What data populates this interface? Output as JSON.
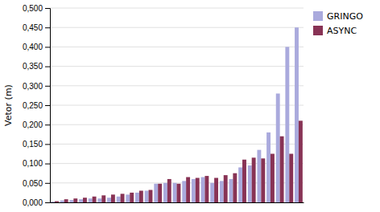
{
  "chart_data": {
    "type": "bar",
    "y_label": "Vetor (m)",
    "categories": [
      null,
      null,
      null,
      null,
      null,
      null,
      null,
      null,
      null,
      null,
      null,
      null,
      null,
      null,
      null,
      null,
      null,
      null,
      null,
      null,
      null,
      null,
      null,
      null,
      null,
      null,
      null
    ],
    "series": [
      {
        "name": "GRINGO",
        "color": "#aaaadd",
        "values": [
          0.002,
          0.005,
          0.006,
          0.008,
          0.01,
          0.01,
          0.012,
          0.015,
          0.02,
          0.025,
          0.03,
          0.048,
          0.05,
          0.05,
          0.055,
          0.06,
          0.065,
          0.05,
          0.055,
          0.06,
          0.09,
          0.095,
          0.135,
          0.18,
          0.28,
          0.4,
          0.45
        ]
      },
      {
        "name": "ASYNC",
        "color": "#883355",
        "values": [
          0.003,
          0.008,
          0.01,
          0.012,
          0.015,
          0.018,
          0.02,
          0.022,
          0.025,
          0.03,
          0.032,
          0.048,
          0.06,
          0.048,
          0.065,
          0.063,
          0.068,
          0.063,
          0.07,
          0.075,
          0.11,
          0.115,
          0.113,
          0.125,
          0.17,
          0.125,
          0.21
        ]
      }
    ],
    "ylim": [
      0.0,
      0.5
    ],
    "yticks": [
      {
        "value": 0.0,
        "label": "0,000"
      },
      {
        "value": 0.05,
        "label": "0,050"
      },
      {
        "value": 0.1,
        "label": "0,100"
      },
      {
        "value": 0.15,
        "label": "0,150"
      },
      {
        "value": 0.2,
        "label": "0,200"
      },
      {
        "value": 0.25,
        "label": "0,250"
      },
      {
        "value": 0.3,
        "label": "0,300"
      },
      {
        "value": 0.35,
        "label": "0,350"
      },
      {
        "value": 0.4,
        "label": "0,400"
      },
      {
        "value": 0.45,
        "label": "0,450"
      },
      {
        "value": 0.5,
        "label": "0,500"
      }
    ],
    "grid": true,
    "legend": "right",
    "tick_labels": "y"
  }
}
